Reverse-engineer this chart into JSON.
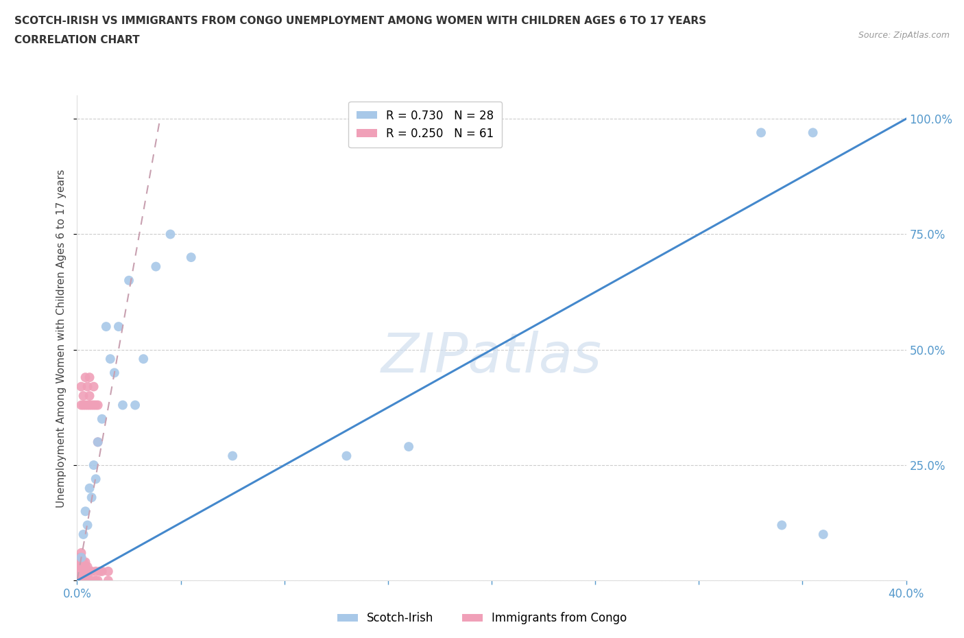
{
  "title_line1": "SCOTCH-IRISH VS IMMIGRANTS FROM CONGO UNEMPLOYMENT AMONG WOMEN WITH CHILDREN AGES 6 TO 17 YEARS",
  "title_line2": "CORRELATION CHART",
  "source_text": "Source: ZipAtlas.com",
  "ylabel": "Unemployment Among Women with Children Ages 6 to 17 years",
  "background_color": "#ffffff",
  "scotch_irish_color": "#a8c8e8",
  "congo_color": "#f0a0b8",
  "scotch_irish_line_color": "#4488cc",
  "congo_line_color": "#d4a0b0",
  "scotch_irish_R": 0.73,
  "scotch_irish_N": 28,
  "congo_R": 0.25,
  "congo_N": 61,
  "grid_color": "#cccccc",
  "xlim": [
    0.0,
    0.4
  ],
  "ylim": [
    0.0,
    1.05
  ],
  "si_x": [
    0.002,
    0.003,
    0.004,
    0.005,
    0.006,
    0.007,
    0.008,
    0.009,
    0.01,
    0.012,
    0.014,
    0.016,
    0.018,
    0.02,
    0.022,
    0.025,
    0.028,
    0.032,
    0.038,
    0.045,
    0.055,
    0.075,
    0.13,
    0.16,
    0.33,
    0.355,
    0.34,
    0.36
  ],
  "si_y": [
    0.05,
    0.1,
    0.15,
    0.12,
    0.2,
    0.18,
    0.25,
    0.22,
    0.3,
    0.35,
    0.55,
    0.48,
    0.45,
    0.55,
    0.38,
    0.65,
    0.38,
    0.48,
    0.68,
    0.75,
    0.7,
    0.27,
    0.27,
    0.29,
    0.97,
    0.97,
    0.12,
    0.1
  ],
  "co_x": [
    0.0005,
    0.001,
    0.001,
    0.001,
    0.001,
    0.001,
    0.001,
    0.001,
    0.001,
    0.001,
    0.002,
    0.002,
    0.002,
    0.002,
    0.002,
    0.002,
    0.002,
    0.002,
    0.002,
    0.002,
    0.002,
    0.003,
    0.003,
    0.003,
    0.003,
    0.003,
    0.003,
    0.003,
    0.004,
    0.004,
    0.004,
    0.004,
    0.004,
    0.004,
    0.004,
    0.005,
    0.005,
    0.005,
    0.005,
    0.005,
    0.005,
    0.006,
    0.006,
    0.006,
    0.006,
    0.006,
    0.007,
    0.007,
    0.008,
    0.008,
    0.008,
    0.009,
    0.009,
    0.009,
    0.01,
    0.01,
    0.01,
    0.011,
    0.012,
    0.015,
    0.015
  ],
  "co_y": [
    0.0,
    0.0,
    0.0,
    0.0,
    0.0,
    0.01,
    0.02,
    0.03,
    0.04,
    0.05,
    0.0,
    0.0,
    0.0,
    0.01,
    0.02,
    0.03,
    0.04,
    0.05,
    0.06,
    0.38,
    0.42,
    0.0,
    0.0,
    0.01,
    0.02,
    0.04,
    0.38,
    0.4,
    0.0,
    0.01,
    0.02,
    0.03,
    0.04,
    0.38,
    0.44,
    0.0,
    0.01,
    0.02,
    0.03,
    0.38,
    0.42,
    0.0,
    0.02,
    0.38,
    0.4,
    0.44,
    0.02,
    0.38,
    0.0,
    0.38,
    0.42,
    0.0,
    0.02,
    0.38,
    0.0,
    0.38,
    0.3,
    0.02,
    0.02,
    0.02,
    0.0
  ]
}
